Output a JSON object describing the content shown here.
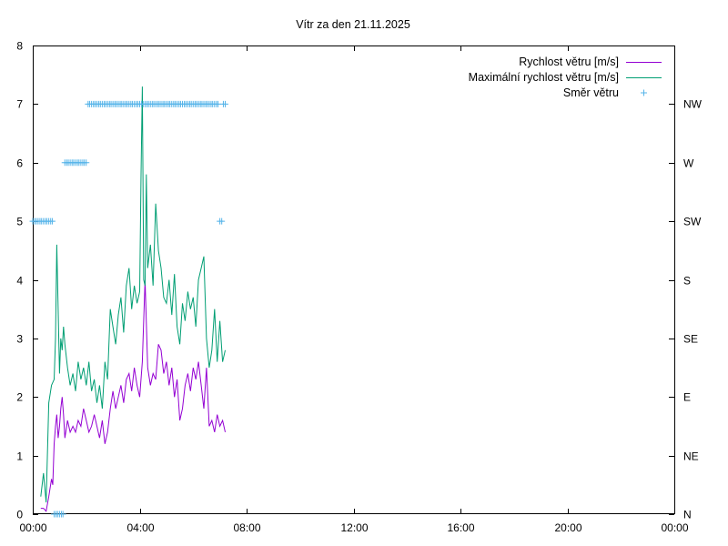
{
  "chart_data": {
    "type": "line",
    "title": "Vítr za den 21.11.2025",
    "xlim": [
      0,
      24
    ],
    "x_ticks": [
      {
        "value": 0,
        "label": "00:00"
      },
      {
        "value": 4,
        "label": "04:00"
      },
      {
        "value": 8,
        "label": "08:00"
      },
      {
        "value": 12,
        "label": "12:00"
      },
      {
        "value": 16,
        "label": "16:00"
      },
      {
        "value": 20,
        "label": "20:00"
      },
      {
        "value": 24,
        "label": "00:00"
      }
    ],
    "ylim": [
      0,
      8
    ],
    "y_ticks": [
      {
        "value": 0,
        "label": "0"
      },
      {
        "value": 1,
        "label": "1"
      },
      {
        "value": 2,
        "label": "2"
      },
      {
        "value": 3,
        "label": "3"
      },
      {
        "value": 4,
        "label": "4"
      },
      {
        "value": 5,
        "label": "5"
      },
      {
        "value": 6,
        "label": "6"
      },
      {
        "value": 7,
        "label": "7"
      },
      {
        "value": 8,
        "label": "8"
      }
    ],
    "y2_ticks": [
      {
        "value": 0,
        "label": "N"
      },
      {
        "value": 1,
        "label": "NE"
      },
      {
        "value": 2,
        "label": "E"
      },
      {
        "value": 3,
        "label": "SE"
      },
      {
        "value": 4,
        "label": "S"
      },
      {
        "value": 5,
        "label": "SW"
      },
      {
        "value": 6,
        "label": "W"
      },
      {
        "value": 7,
        "label": "NW"
      }
    ],
    "grid": false,
    "legend_position": "top-right",
    "series": [
      {
        "name": "Rychlost větru [m/s]",
        "type": "line",
        "color": "#9400d3",
        "x": [
          0.3,
          0.4,
          0.5,
          0.6,
          0.7,
          0.75,
          0.8,
          0.85,
          0.9,
          0.95,
          1.0,
          1.05,
          1.1,
          1.15,
          1.2,
          1.3,
          1.4,
          1.5,
          1.6,
          1.7,
          1.8,
          1.9,
          2.0,
          2.1,
          2.2,
          2.3,
          2.4,
          2.5,
          2.6,
          2.7,
          2.8,
          2.9,
          3.0,
          3.1,
          3.2,
          3.3,
          3.4,
          3.5,
          3.6,
          3.7,
          3.8,
          3.9,
          4.0,
          4.1,
          4.2,
          4.3,
          4.4,
          4.5,
          4.6,
          4.7,
          4.8,
          4.9,
          5.0,
          5.1,
          5.2,
          5.3,
          5.4,
          5.5,
          5.6,
          5.7,
          5.8,
          5.9,
          6.0,
          6.1,
          6.2,
          6.3,
          6.4,
          6.5,
          6.6,
          6.7,
          6.8,
          6.9,
          7.0,
          7.1,
          7.2
        ],
        "y": [
          0.1,
          0.1,
          0.05,
          0.3,
          0.6,
          0.5,
          1.2,
          1.5,
          1.7,
          1.3,
          1.5,
          1.8,
          2.0,
          1.7,
          1.3,
          1.6,
          1.4,
          1.5,
          1.4,
          1.6,
          1.5,
          1.8,
          1.6,
          1.4,
          1.5,
          1.7,
          1.5,
          1.3,
          1.6,
          1.2,
          1.4,
          1.8,
          2.1,
          1.8,
          2.0,
          2.2,
          1.9,
          2.3,
          2.4,
          2.1,
          2.5,
          2.2,
          2.0,
          2.6,
          4.0,
          2.5,
          2.2,
          2.4,
          2.3,
          2.9,
          2.8,
          2.4,
          2.6,
          2.2,
          2.5,
          2.0,
          2.3,
          1.6,
          1.8,
          2.2,
          2.4,
          2.1,
          2.5,
          2.3,
          2.6,
          2.2,
          1.8,
          2.5,
          1.5,
          1.6,
          1.4,
          1.7,
          1.5,
          1.6,
          1.4
        ]
      },
      {
        "name": "Maximální rychlost větru [m/s]",
        "type": "line",
        "color": "#009e73",
        "x": [
          0.3,
          0.4,
          0.5,
          0.6,
          0.7,
          0.8,
          0.85,
          0.9,
          0.95,
          1.0,
          1.05,
          1.1,
          1.15,
          1.2,
          1.3,
          1.4,
          1.5,
          1.6,
          1.7,
          1.8,
          1.9,
          2.0,
          2.1,
          2.2,
          2.3,
          2.4,
          2.5,
          2.6,
          2.7,
          2.8,
          2.9,
          3.0,
          3.1,
          3.2,
          3.3,
          3.4,
          3.5,
          3.6,
          3.7,
          3.8,
          3.9,
          4.0,
          4.05,
          4.1,
          4.15,
          4.2,
          4.25,
          4.3,
          4.4,
          4.5,
          4.6,
          4.7,
          4.8,
          4.9,
          5.0,
          5.1,
          5.2,
          5.3,
          5.4,
          5.5,
          5.6,
          5.7,
          5.8,
          5.9,
          6.0,
          6.1,
          6.2,
          6.3,
          6.4,
          6.5,
          6.6,
          6.7,
          6.8,
          6.9,
          7.0,
          7.1,
          7.2
        ],
        "y": [
          0.3,
          0.7,
          0.2,
          1.9,
          2.2,
          2.3,
          3.0,
          4.6,
          3.5,
          2.4,
          3.0,
          2.8,
          3.2,
          2.9,
          2.5,
          2.2,
          2.4,
          2.1,
          2.6,
          2.3,
          2.5,
          2.2,
          2.6,
          2.1,
          2.3,
          1.9,
          2.2,
          1.8,
          2.6,
          2.3,
          3.5,
          3.2,
          2.9,
          3.4,
          3.7,
          3.1,
          3.9,
          4.2,
          3.5,
          3.9,
          3.6,
          3.8,
          5.8,
          7.3,
          4.0,
          3.9,
          5.8,
          4.2,
          4.6,
          3.9,
          5.3,
          4.5,
          4.2,
          3.7,
          3.6,
          4.0,
          3.4,
          4.1,
          3.2,
          2.9,
          3.6,
          3.3,
          3.8,
          3.5,
          3.7,
          3.2,
          4.0,
          4.2,
          4.4,
          3.0,
          2.5,
          2.8,
          3.5,
          2.6,
          3.3,
          2.6,
          2.8
        ]
      },
      {
        "name": "Směr větru",
        "type": "scatter",
        "color": "#56b4e9",
        "x": [
          0.0,
          0.07,
          0.13,
          0.2,
          0.27,
          0.33,
          0.4,
          0.47,
          0.53,
          0.6,
          0.67,
          0.73,
          0.8,
          0.87,
          0.93,
          1.0,
          1.07,
          1.13,
          1.2,
          1.27,
          1.33,
          1.4,
          1.47,
          1.53,
          1.6,
          1.67,
          1.73,
          1.8,
          1.87,
          1.93,
          2.0,
          2.07,
          2.13,
          2.2,
          2.27,
          2.33,
          2.4,
          2.47,
          2.53,
          2.6,
          2.67,
          2.73,
          2.8,
          2.87,
          2.93,
          3.0,
          3.07,
          3.13,
          3.2,
          3.27,
          3.33,
          3.4,
          3.47,
          3.53,
          3.6,
          3.67,
          3.73,
          3.8,
          3.87,
          3.93,
          4.0,
          4.07,
          4.13,
          4.2,
          4.27,
          4.33,
          4.4,
          4.47,
          4.53,
          4.6,
          4.67,
          4.73,
          4.8,
          4.87,
          4.93,
          5.0,
          5.07,
          5.13,
          5.2,
          5.27,
          5.33,
          5.4,
          5.47,
          5.53,
          5.6,
          5.67,
          5.73,
          5.8,
          5.87,
          5.93,
          6.0,
          6.07,
          6.13,
          6.2,
          6.27,
          6.33,
          6.4,
          6.47,
          6.53,
          6.6,
          6.67,
          6.73,
          6.8,
          6.87,
          6.93,
          7.0,
          7.07,
          7.13,
          7.2
        ],
        "y": [
          5,
          5,
          5,
          5,
          5,
          5,
          5,
          5,
          5,
          5,
          5,
          5,
          0,
          0,
          0,
          0,
          0,
          0,
          6,
          6,
          6,
          6,
          6,
          6,
          6,
          6,
          6,
          6,
          6,
          6,
          6,
          7,
          7,
          7,
          7,
          7,
          7,
          7,
          7,
          7,
          7,
          7,
          7,
          7,
          7,
          7,
          7,
          7,
          7,
          7,
          7,
          7,
          7,
          7,
          7,
          7,
          7,
          7,
          7,
          7,
          7,
          7,
          7,
          7,
          7,
          7,
          7,
          7,
          7,
          7,
          7,
          7,
          7,
          7,
          7,
          7,
          7,
          7,
          7,
          7,
          7,
          7,
          7,
          7,
          7,
          7,
          7,
          7,
          7,
          7,
          7,
          7,
          7,
          7,
          7,
          7,
          7,
          7,
          7,
          7,
          7,
          7,
          7,
          7,
          7,
          5,
          5,
          7,
          7
        ]
      }
    ]
  }
}
